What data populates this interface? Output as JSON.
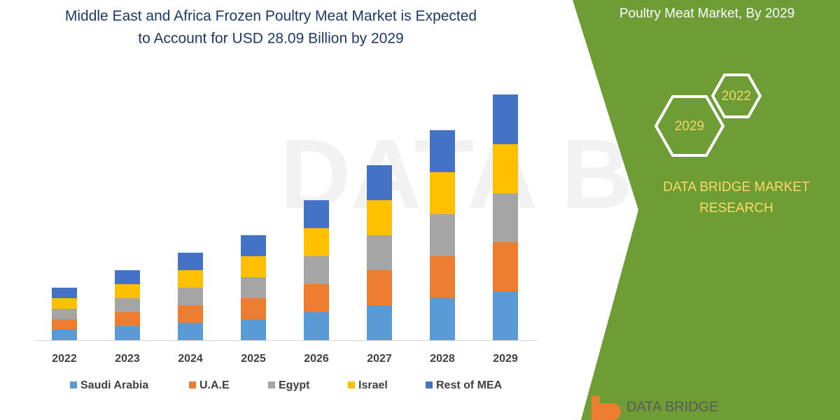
{
  "chart_data": {
    "type": "stacked-bar",
    "title": [
      "Middle East and Africa Frozen Poultry Meat Market is Expected",
      "to Account for USD 28.09 Billion by 2029"
    ],
    "categories": [
      "2022",
      "2023",
      "2024",
      "2025",
      "2026",
      "2027",
      "2028",
      "2029"
    ],
    "series": [
      {
        "name": "Saudi Arabia",
        "color": "#5b9bd5",
        "values": [
          15,
          20,
          25,
          30,
          40,
          50,
          60,
          70
        ]
      },
      {
        "name": "U.A.E",
        "color": "#ed7d31",
        "values": [
          15,
          20,
          25,
          30,
          40,
          50,
          60,
          70
        ]
      },
      {
        "name": "Egypt",
        "color": "#a5a5a5",
        "values": [
          15,
          20,
          25,
          30,
          40,
          50,
          60,
          70
        ]
      },
      {
        "name": "Israel",
        "color": "#ffc000",
        "values": [
          15,
          20,
          25,
          30,
          40,
          50,
          60,
          70
        ]
      },
      {
        "name": "Rest of MEA",
        "color": "#4472c4",
        "values": [
          15,
          20,
          25,
          30,
          40,
          50,
          60,
          71
        ]
      }
    ],
    "ylim": [
      0,
      351
    ]
  },
  "sidebar": {
    "heading": "Poultry Meat Market, By 2029",
    "hex_years": [
      "2022",
      "2029"
    ],
    "brand": [
      "DATA BRIDGE MARKET",
      "RESEARCH"
    ],
    "logo": "DATA BRIDGE"
  }
}
